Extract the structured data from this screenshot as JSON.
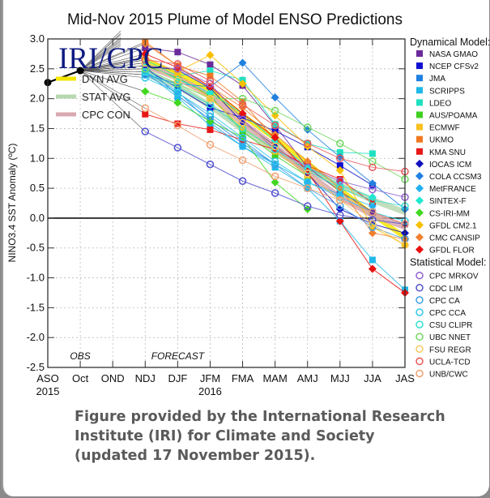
{
  "chart_data": {
    "type": "line",
    "title": "Mid-Nov 2015 Plume of Model ENSO Predictions",
    "logo": "IRI/CPC",
    "ylabel": "NINO3.4 SST Anomaly (ºC)",
    "xlabel": "",
    "ylim": [
      -2.5,
      3.0
    ],
    "yticks": [
      "3.0",
      "2.5",
      "2.0",
      "1.5",
      "1.0",
      "0.5",
      "0.0",
      "-0.5",
      "-1.0",
      "-1.5",
      "-2.0",
      "-2.5"
    ],
    "ytick_values": [
      3.0,
      2.5,
      2.0,
      1.5,
      1.0,
      0.5,
      0.0,
      -0.5,
      -1.0,
      -1.5,
      -2.0,
      -2.5
    ],
    "categories": [
      "ASO",
      "Oct",
      "OND",
      "NDJ",
      "DJF",
      "JFM",
      "FMA",
      "MAM",
      "AMJ",
      "MJJ",
      "JJA",
      "JAS"
    ],
    "year_labels": [
      {
        "text": "2015",
        "at": "ASO"
      },
      {
        "text": "2016",
        "at": "JFM"
      }
    ],
    "region_labels": [
      {
        "text": "OBS",
        "at": "Oct"
      },
      {
        "text": "FORECAST",
        "at": "DJF"
      }
    ],
    "grid": true,
    "zero_line": true,
    "observed": {
      "name": "Observed",
      "color": "#000000",
      "x": [
        "ASO",
        "Oct"
      ],
      "values": [
        2.27,
        2.47
      ]
    },
    "forecast_categories": [
      "NDJ",
      "DJF",
      "JFM",
      "FMA",
      "MAM",
      "AMJ",
      "MJJ",
      "JJA",
      "JAS"
    ],
    "averages": [
      {
        "name": "DYN AVG",
        "color": "#f5e600",
        "values": [
          2.62,
          2.42,
          2.14,
          1.72,
          1.33,
          0.92,
          0.48,
          0.06,
          -0.32
        ]
      },
      {
        "name": "STAT AVG",
        "color": "#b8d8b0",
        "values": [
          2.42,
          2.21,
          1.88,
          1.48,
          1.13,
          0.8,
          0.55,
          0.3,
          0.1
        ]
      },
      {
        "name": "CPC CON",
        "color": "#d8a8b0",
        "values": [
          2.55,
          2.35,
          2.05,
          1.6,
          1.2,
          0.75,
          0.35,
          0.05,
          -0.15
        ]
      }
    ],
    "legend_placement": "right",
    "dynamical_header": "Dynamical Model:",
    "statistical_header": "Statistical Model:",
    "dynamical": [
      {
        "name": "NASA GMAO",
        "color": "#6a2a9a",
        "marker": "square",
        "values": [
          2.85,
          2.78,
          2.57,
          2.22,
          1.55,
          0.85,
          0.45,
          0.1,
          -0.1
        ]
      },
      {
        "name": "NCEP CFSv2",
        "color": "#1010d0",
        "marker": "square",
        "values": [
          2.5,
          2.18,
          1.85,
          1.68,
          1.46,
          1.19,
          0.88,
          0.55,
          null
        ]
      },
      {
        "name": "JMA",
        "color": "#2080e0",
        "marker": "square",
        "values": [
          2.55,
          2.05,
          1.65,
          1.25,
          0.9,
          null,
          null,
          null,
          null
        ]
      },
      {
        "name": "SCRIPPS",
        "color": "#20b8e8",
        "marker": "square",
        "values": [
          2.45,
          2.02,
          1.55,
          1.2,
          0.85,
          0.5,
          -0.05,
          -0.7,
          -1.2
        ]
      },
      {
        "name": "LDEO",
        "color": "#20e0c0",
        "marker": "square",
        "values": [
          2.65,
          2.38,
          2.47,
          2.31,
          1.57,
          1.25,
          1.1,
          1.08,
          null
        ]
      },
      {
        "name": "AUS/POAMA",
        "color": "#40d020",
        "marker": "square",
        "values": [
          2.55,
          2.35,
          2.05,
          1.45,
          1.05,
          0.7,
          null,
          null,
          null
        ]
      },
      {
        "name": "ECMWF",
        "color": "#f8c020",
        "marker": "square",
        "values": [
          2.7,
          2.42,
          2.0,
          1.52,
          1.12,
          0.72,
          null,
          null,
          null
        ]
      },
      {
        "name": "UKMO",
        "color": "#f07820",
        "marker": "square",
        "values": [
          2.95,
          2.55,
          2.38,
          1.95,
          1.3,
          0.8,
          null,
          null,
          null
        ]
      },
      {
        "name": "KMA SNU",
        "color": "#e81818",
        "marker": "square",
        "values": [
          1.74,
          1.58,
          1.48,
          1.31,
          1.15,
          0.88,
          0.65,
          0.25,
          null
        ]
      },
      {
        "name": "IOCAS ICM",
        "color": "#1010c0",
        "marker": "diamond",
        "values": [
          2.55,
          2.48,
          2.18,
          1.6,
          1.21,
          0.75,
          0.15,
          -0.1,
          -0.25
        ]
      },
      {
        "name": "COLA CCSM3",
        "color": "#2080e0",
        "marker": "diamond",
        "values": [
          2.4,
          2.25,
          2.2,
          2.6,
          2.02,
          1.48,
          1.02,
          0.58,
          0.15
        ]
      },
      {
        "name": "MetFRANCE",
        "color": "#20b0f0",
        "marker": "diamond",
        "values": [
          2.45,
          2.12,
          1.6,
          1.2,
          0.9,
          0.6,
          0.4,
          0.2,
          null
        ]
      },
      {
        "name": "SINTEX-F",
        "color": "#20e8d0",
        "marker": "diamond",
        "values": [
          2.6,
          2.32,
          2.1,
          1.75,
          1.3,
          0.85,
          0.55,
          0.35,
          null
        ]
      },
      {
        "name": "CS-IRI-MM",
        "color": "#40d820",
        "marker": "diamond",
        "values": [
          2.12,
          1.93,
          1.62,
          1.35,
          0.6,
          0.15,
          null,
          null,
          null
        ]
      },
      {
        "name": "GFDL CM2.1",
        "color": "#f8c000",
        "marker": "diamond",
        "values": [
          2.68,
          2.45,
          2.73,
          2.25,
          1.72,
          1.2,
          0.8,
          -0.15,
          -0.45
        ]
      },
      {
        "name": "CMC CANSIP",
        "color": "#f08030",
        "marker": "diamond",
        "values": [
          2.92,
          2.55,
          2.2,
          1.85,
          1.4,
          0.95,
          0.5,
          -0.25,
          -0.35
        ]
      },
      {
        "name": "GFDL FLOR",
        "color": "#e81010",
        "marker": "diamond",
        "values": [
          2.75,
          2.52,
          2.2,
          1.75,
          1.35,
          0.78,
          -0.05,
          -0.85,
          -1.25
        ]
      }
    ],
    "statistical": [
      {
        "name": "CPC MRKOV",
        "color": "#9060d0",
        "marker": "circle",
        "values": [
          2.55,
          2.5,
          2.25,
          1.65,
          1.15,
          0.85,
          0.62,
          0.48,
          0.35
        ]
      },
      {
        "name": "CDC LIM",
        "color": "#5050d0",
        "marker": "circle",
        "values": [
          1.45,
          1.18,
          0.9,
          0.62,
          0.42,
          0.2,
          0.05,
          -0.03,
          -0.1
        ]
      },
      {
        "name": "CPC CA",
        "color": "#40a0e0",
        "marker": "circle",
        "values": [
          2.4,
          2.1,
          1.7,
          1.3,
          0.9,
          0.5,
          0.2,
          -0.15,
          -0.35
        ]
      },
      {
        "name": "CPC CCA",
        "color": "#30c8e8",
        "marker": "circle",
        "values": [
          2.35,
          2.1,
          1.75,
          1.35,
          0.95,
          0.6,
          0.35,
          0.1,
          -0.05
        ]
      },
      {
        "name": "CSU CLIPR",
        "color": "#30e0d0",
        "marker": "circle",
        "values": [
          2.45,
          2.2,
          1.9,
          1.5,
          1.15,
          0.8,
          0.5,
          0.3,
          0.2
        ]
      },
      {
        "name": "UBC NNET",
        "color": "#70d860",
        "marker": "circle",
        "values": [
          2.5,
          2.25,
          2.0,
          2.0,
          1.8,
          1.52,
          1.25,
          0.95,
          0.65
        ]
      },
      {
        "name": "FSU REGR",
        "color": "#f8c860",
        "marker": "circle",
        "values": [
          2.6,
          2.3,
          2.0,
          1.6,
          1.2,
          0.75,
          0.3,
          -0.1,
          -0.45
        ]
      },
      {
        "name": "UCLA-TCD",
        "color": "#e85858",
        "marker": "circle",
        "values": [
          2.65,
          2.58,
          2.3,
          1.9,
          1.55,
          1.25,
          1.0,
          0.85,
          0.78
        ]
      },
      {
        "name": "UNB/CWC",
        "color": "#f0a070",
        "marker": "circle",
        "values": [
          1.84,
          1.55,
          1.23,
          0.97,
          0.7,
          0.5,
          0.3,
          0.1,
          -0.1
        ]
      }
    ]
  },
  "caption": {
    "lines": [
      "Figure provided by the International Research",
      "Institute (IRI) for Climate and Society",
      "(updated 17 November 2015)."
    ]
  }
}
